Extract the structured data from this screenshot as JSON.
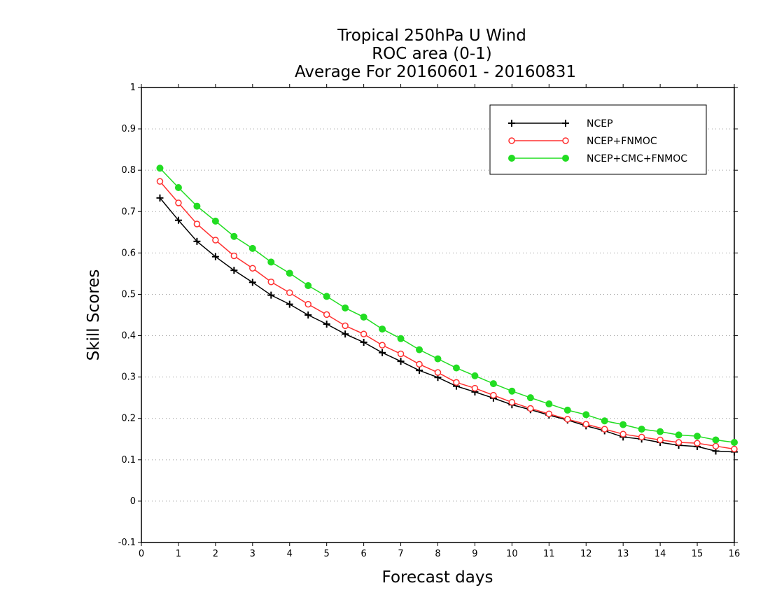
{
  "title_lines": [
    "Tropical 250hPa U Wind",
    "ROC area (0-1)",
    "Average For 20160601 - 20160831"
  ],
  "chart_data": {
    "type": "line",
    "title": "Tropical 250hPa U Wind\nROC area (0-1)\nAverage For 20160601 - 20160831",
    "xlabel": "Forecast days",
    "ylabel": "Skill Scores",
    "xlim": [
      0,
      16
    ],
    "ylim": [
      -0.1,
      1
    ],
    "xticks": [
      "0",
      "1",
      "2",
      "3",
      "4",
      "5",
      "6",
      "7",
      "8",
      "9",
      "10",
      "11",
      "12",
      "13",
      "14",
      "15",
      "16"
    ],
    "yticks": [
      "-0.1",
      "0",
      "0.1",
      "0.2",
      "0.3",
      "0.4",
      "0.5",
      "0.6",
      "0.7",
      "0.8",
      "0.9",
      "1"
    ],
    "grid": true,
    "grid_style": "dotted horizontal",
    "legend_position": "top-right",
    "x": [
      0.5,
      1,
      1.5,
      2,
      2.5,
      3,
      3.5,
      4,
      4.5,
      5,
      5.5,
      6,
      6.5,
      7,
      7.5,
      8,
      8.5,
      9,
      9.5,
      10,
      10.5,
      11,
      11.5,
      12,
      12.5,
      13,
      13.5,
      14,
      14.5,
      15,
      15.5,
      16
    ],
    "series": [
      {
        "name": "NCEP",
        "color": "#000000",
        "marker": "plus",
        "values": [
          0.733,
          0.679,
          0.628,
          0.591,
          0.558,
          0.529,
          0.498,
          0.476,
          0.45,
          0.428,
          0.404,
          0.384,
          0.359,
          0.338,
          0.316,
          0.299,
          0.278,
          0.264,
          0.249,
          0.233,
          0.221,
          0.208,
          0.196,
          0.182,
          0.17,
          0.155,
          0.15,
          0.142,
          0.135,
          0.132,
          0.121,
          0.119
        ]
      },
      {
        "name": "NCEP+FNMOC",
        "color": "#ff3030",
        "marker": "open-circle",
        "values": [
          0.773,
          0.721,
          0.67,
          0.631,
          0.593,
          0.563,
          0.53,
          0.504,
          0.476,
          0.451,
          0.424,
          0.404,
          0.377,
          0.356,
          0.331,
          0.311,
          0.287,
          0.273,
          0.256,
          0.239,
          0.224,
          0.211,
          0.198,
          0.186,
          0.174,
          0.162,
          0.155,
          0.148,
          0.142,
          0.14,
          0.133,
          0.126
        ]
      },
      {
        "name": "NCEP+CMC+FNMOC",
        "color": "#22dd22",
        "marker": "filled-circle",
        "values": [
          0.805,
          0.758,
          0.713,
          0.677,
          0.64,
          0.611,
          0.578,
          0.551,
          0.521,
          0.495,
          0.467,
          0.445,
          0.416,
          0.393,
          0.366,
          0.344,
          0.322,
          0.303,
          0.284,
          0.266,
          0.25,
          0.235,
          0.22,
          0.209,
          0.194,
          0.185,
          0.174,
          0.168,
          0.16,
          0.157,
          0.148,
          0.142
        ]
      }
    ]
  }
}
